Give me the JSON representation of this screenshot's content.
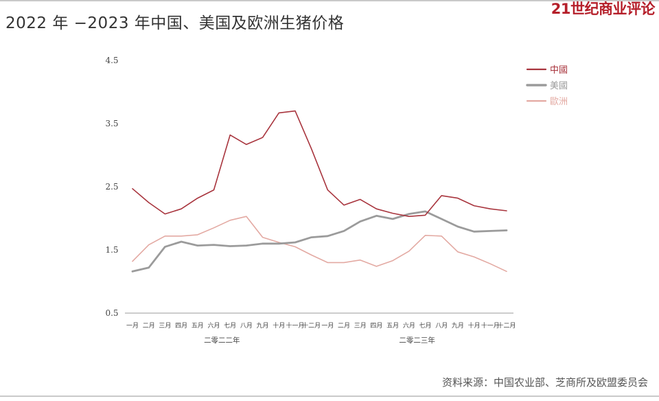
{
  "page": {
    "title": "2022 年 −2023 年中国、美国及欧洲生猪价格",
    "brand": "21世纪商业评论",
    "source": "资料来源：中国农业部、芝商所及欧盟委员会"
  },
  "chart_data": {
    "type": "line",
    "title": "2022 年 −2023 年中国、美国及欧洲生猪价格",
    "ylim": [
      0.5,
      4.5
    ],
    "y_ticks": [
      "0.5",
      "1.5",
      "2.5",
      "3.5",
      "4.5"
    ],
    "categories": [
      "一月",
      "二月",
      "三月",
      "四月",
      "五月",
      "六月",
      "七月",
      "八月",
      "九月",
      "十月",
      "十一月",
      "十二月",
      "一月",
      "二月",
      "三月",
      "四月",
      "五月",
      "六月",
      "七月",
      "八月",
      "九月",
      "十月",
      "十一月",
      "十二月"
    ],
    "year_labels": [
      {
        "label": "二零二二年",
        "from": 0,
        "to": 11
      },
      {
        "label": "二零二三年",
        "from": 12,
        "to": 23
      }
    ],
    "grid": false,
    "legend_position": "top-right",
    "series": [
      {
        "name": "中國",
        "color": "#a8343d",
        "width": 1.6,
        "values": [
          2.47,
          2.25,
          2.07,
          2.15,
          2.32,
          2.45,
          3.32,
          3.17,
          3.28,
          3.67,
          3.7,
          3.1,
          2.45,
          2.21,
          2.3,
          2.15,
          2.08,
          2.03,
          2.05,
          2.36,
          2.32,
          2.2,
          2.15,
          2.12
        ]
      },
      {
        "name": "美國",
        "color": "#9b9b9b",
        "width": 2.8,
        "values": [
          1.16,
          1.22,
          1.55,
          1.63,
          1.57,
          1.58,
          1.56,
          1.57,
          1.6,
          1.6,
          1.62,
          1.7,
          1.72,
          1.8,
          1.95,
          2.04,
          1.99,
          2.07,
          2.11,
          1.99,
          1.87,
          1.79,
          1.8,
          1.81
        ]
      },
      {
        "name": "歐洲",
        "color": "#e3a9a2",
        "width": 1.6,
        "values": [
          1.32,
          1.58,
          1.72,
          1.72,
          1.74,
          1.85,
          1.97,
          2.03,
          1.7,
          1.62,
          1.55,
          1.42,
          1.3,
          1.3,
          1.34,
          1.24,
          1.33,
          1.48,
          1.73,
          1.72,
          1.47,
          1.39,
          1.28,
          1.16
        ]
      }
    ]
  }
}
